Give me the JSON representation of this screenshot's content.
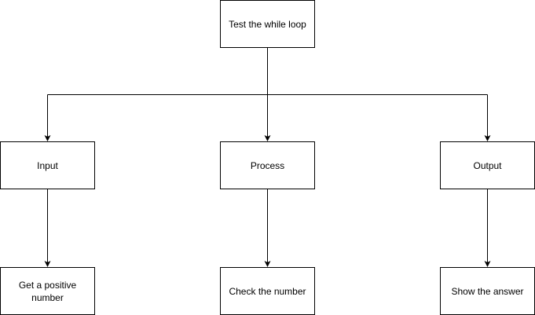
{
  "diagram": {
    "type": "tree-flowchart",
    "line_color": "#000000",
    "box_border_color": "#000000",
    "box_fill_color": "#ffffff",
    "root": {
      "label": "Test the while loop"
    },
    "level1": [
      {
        "label": "Input"
      },
      {
        "label": "Process"
      },
      {
        "label": "Output"
      }
    ],
    "level2": [
      {
        "label": "Get a positive number"
      },
      {
        "label": "Check the number"
      },
      {
        "label": "Show the answer"
      }
    ]
  }
}
